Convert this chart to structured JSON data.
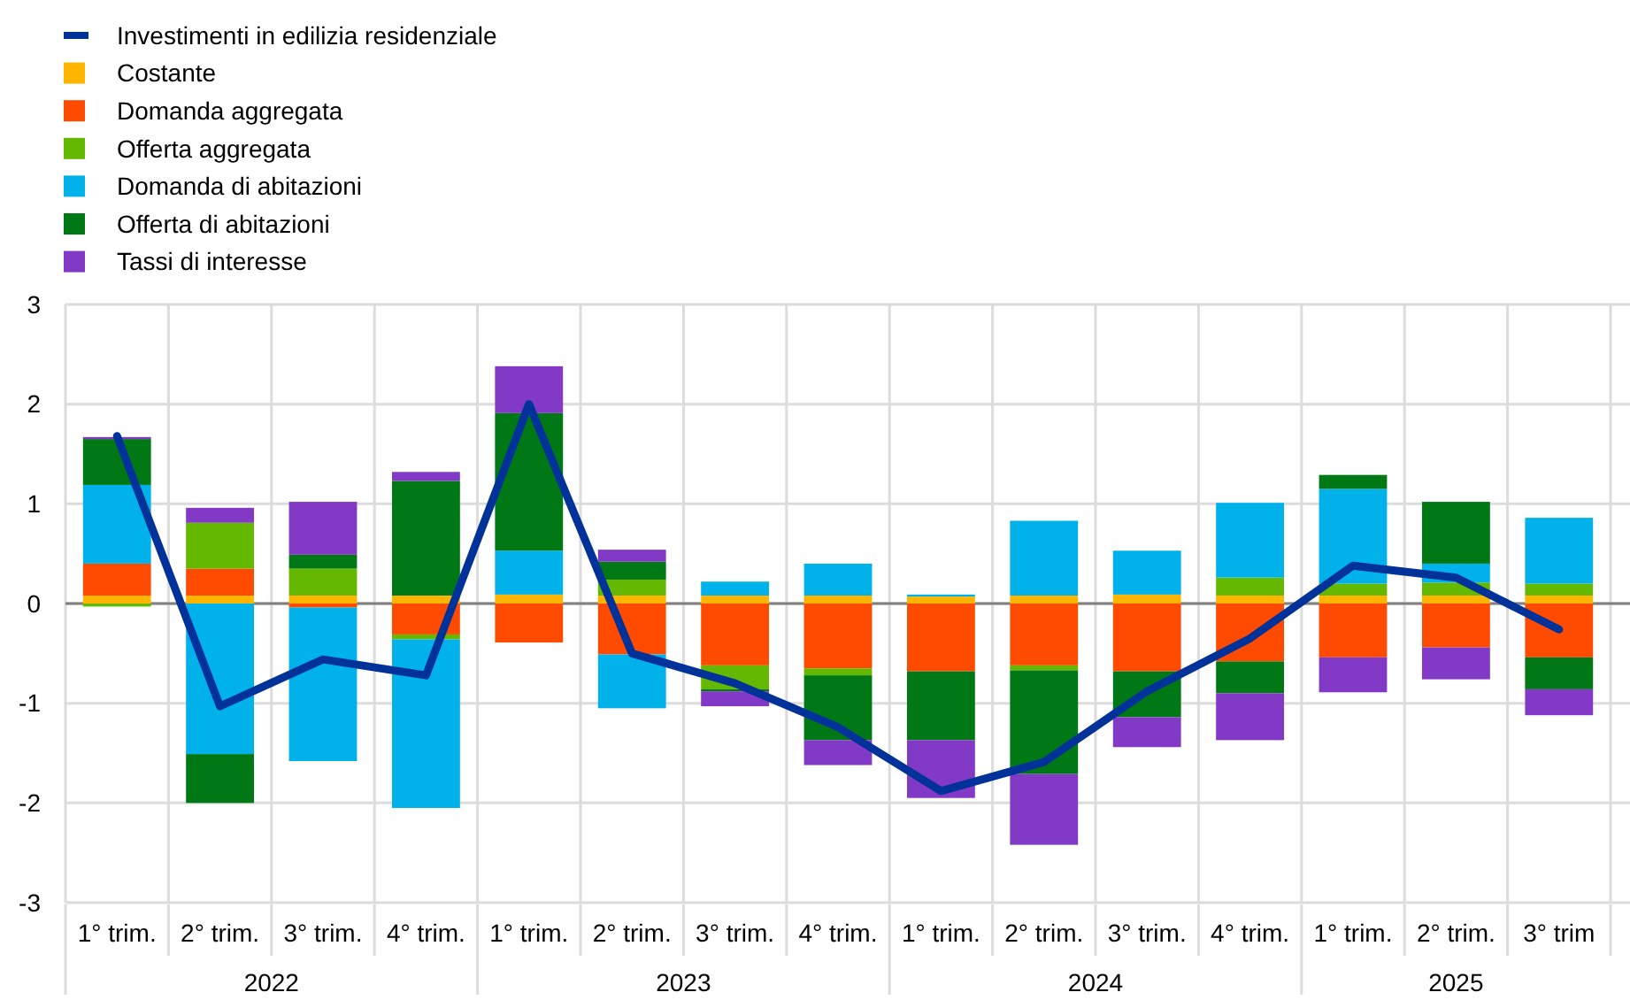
{
  "chart_data": {
    "type": "bar",
    "stacked": true,
    "categories": [
      "1° trim.",
      "2° trim.",
      "3° trim.",
      "4° trim.",
      "1° trim.",
      "2° trim.",
      "3° trim.",
      "4° trim.",
      "1° trim.",
      "2° trim.",
      "3° trim.",
      "4° trim.",
      "1° trim.",
      "2° trim.",
      "3° trim"
    ],
    "annotations": [
      "2022",
      "2023",
      "2024",
      "2025"
    ],
    "ylim": [
      -3,
      3
    ],
    "yticks": [
      -3,
      -2,
      -1,
      0,
      1,
      2,
      3
    ],
    "grid": true,
    "legend": "top left",
    "series": [
      {
        "name": "Investimenti in edilizia residenziale",
        "type": "line",
        "color": "#003299",
        "values": [
          1.68,
          -1.03,
          -0.56,
          -0.72,
          2.0,
          -0.5,
          -0.8,
          -1.24,
          -1.88,
          -1.59,
          -0.88,
          -0.35,
          0.38,
          0.26,
          -0.26
        ]
      },
      {
        "name": "Costante",
        "color": "#ffb400",
        "values": [
          0.08,
          0.08,
          0.08,
          0.08,
          0.09,
          0.08,
          0.08,
          0.08,
          0.07,
          0.08,
          0.09,
          0.08,
          0.08,
          0.08,
          0.08
        ]
      },
      {
        "name": "Domanda aggregata",
        "color": "#ff4b00",
        "values": [
          0.32,
          0.27,
          -0.04,
          -0.31,
          -0.39,
          -0.51,
          -0.62,
          -0.65,
          -0.68,
          -0.62,
          -0.68,
          -0.58,
          -0.54,
          -0.44,
          -0.54
        ]
      },
      {
        "name": "Offerta aggregata",
        "color": "#65b800",
        "values": [
          -0.03,
          0.46,
          0.27,
          -0.05,
          null,
          0.16,
          -0.24,
          -0.07,
          null,
          -0.05,
          null,
          0.18,
          0.12,
          0.13,
          0.12
        ]
      },
      {
        "name": "Domanda di abitazioni",
        "color": "#00b1ea",
        "values": [
          0.79,
          -1.51,
          -1.54,
          -1.69,
          0.44,
          -0.54,
          0.14,
          0.32,
          0.02,
          0.75,
          0.44,
          0.75,
          0.95,
          0.19,
          0.66
        ]
      },
      {
        "name": "Offerta di abitazioni",
        "color": "#007816",
        "values": [
          0.46,
          -0.49,
          0.14,
          1.15,
          1.38,
          0.18,
          -0.02,
          -0.65,
          -0.69,
          -1.04,
          -0.46,
          -0.32,
          0.14,
          0.62,
          -0.32
        ]
      },
      {
        "name": "Tassi di interesse",
        "color": "#8139c6",
        "values": [
          0.02,
          0.15,
          0.53,
          0.09,
          0.47,
          0.12,
          -0.15,
          -0.25,
          -0.58,
          -0.71,
          -0.3,
          -0.47,
          -0.35,
          -0.32,
          -0.26
        ]
      }
    ]
  }
}
